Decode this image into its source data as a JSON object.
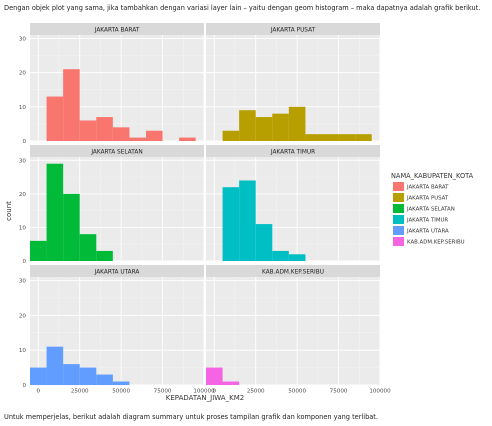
{
  "captions": {
    "top": "Dengan objek plot yang sama, jika tambahkan dengan variasi layer lain – yaitu dengan geom histogram – maka dapatnya adalah grafik berikut.",
    "bottom": "Untuk memperjelas, berikut adalah diagram summary untuk proses tampilan grafik dan komponen yang terlibat."
  },
  "chart_data": {
    "type": "bar",
    "subtype": "faceted-histogram",
    "xlabel": "KEPADATAN_JIWA_KM2",
    "ylabel": "count",
    "xlim": [
      -5000,
      100000
    ],
    "ylim": [
      0,
      31
    ],
    "x_ticks": [
      "0",
      "25000",
      "50000",
      "75000",
      "100000"
    ],
    "x_tick_values": [
      0,
      25000,
      50000,
      75000,
      100000
    ],
    "y_ticks": [
      "0",
      "10",
      "20",
      "30"
    ],
    "y_tick_values": [
      0,
      10,
      20,
      30
    ],
    "bin_width": 10000,
    "bin_starts": [
      -5000,
      5000,
      15000,
      25000,
      35000,
      45000,
      55000,
      65000,
      75000,
      85000
    ],
    "legend": {
      "title": "NAMA_KABUPATEN_KOTA",
      "position": "right"
    },
    "grid": true,
    "panel_background": "#ebebeb",
    "strip_background": "#d9d9d9",
    "series": [
      {
        "name": "JAKARTA BARAT",
        "color": "#F8766D",
        "values": [
          0,
          13,
          21,
          6,
          7,
          4,
          1,
          3,
          0,
          1
        ]
      },
      {
        "name": "JAKARTA PUSAT",
        "color": "#B79F00",
        "values": [
          0,
          3,
          9,
          7,
          8,
          10,
          2,
          2,
          2,
          2
        ]
      },
      {
        "name": "JAKARTA SELATAN",
        "color": "#00BA38",
        "values": [
          6,
          29,
          20,
          8,
          3,
          0,
          0,
          0,
          0,
          0
        ]
      },
      {
        "name": "JAKARTA TIMUR",
        "color": "#00BFC4",
        "values": [
          0,
          22,
          24,
          11,
          3,
          2,
          0,
          0,
          0,
          0
        ]
      },
      {
        "name": "JAKARTA UTARA",
        "color": "#619CFF",
        "values": [
          5,
          11,
          6,
          5,
          3,
          1,
          0,
          0,
          0,
          0
        ]
      },
      {
        "name": "KAB.ADM.KEP.SERIBU",
        "color": "#F564E3",
        "values": [
          5,
          1,
          0,
          0,
          0,
          0,
          0,
          0,
          0,
          0
        ]
      }
    ]
  }
}
